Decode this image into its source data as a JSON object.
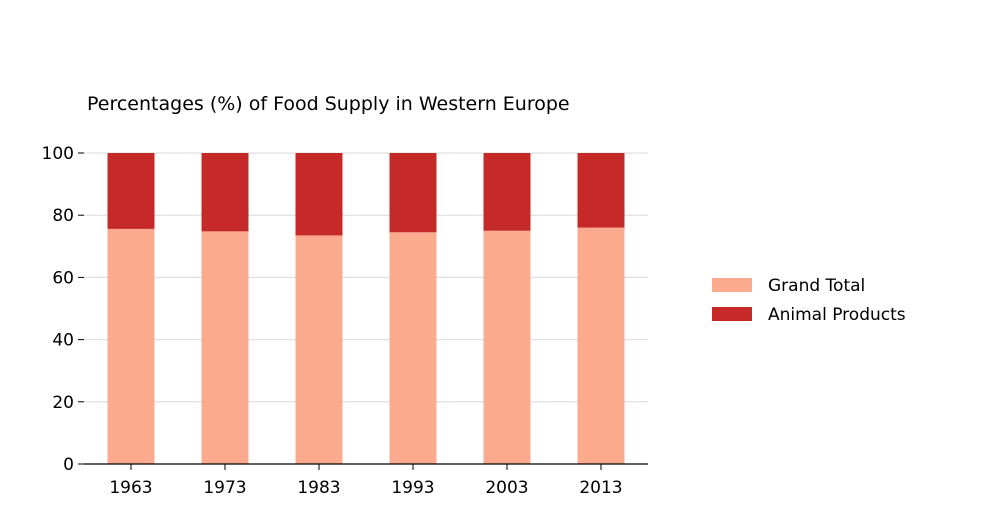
{
  "chart_data": {
    "type": "bar",
    "stacked": true,
    "title": "Percentages (%) of Food Supply in Western Europe",
    "xlabel": "",
    "ylabel": "",
    "categories": [
      "1963",
      "1973",
      "1983",
      "1993",
      "2003",
      "2013"
    ],
    "series": [
      {
        "name": "Grand Total",
        "color": "#fcaa8e",
        "values": [
          75.6,
          74.8,
          73.5,
          74.5,
          75.0,
          76.0
        ]
      },
      {
        "name": "Animal Products",
        "color": "#c62a28",
        "values": [
          24.4,
          25.2,
          26.5,
          25.5,
          25.0,
          24.0
        ]
      }
    ],
    "ylim": [
      0,
      100
    ],
    "yticks": [
      0,
      20,
      40,
      60,
      80,
      100
    ],
    "grid": true,
    "legend_position": "right"
  }
}
